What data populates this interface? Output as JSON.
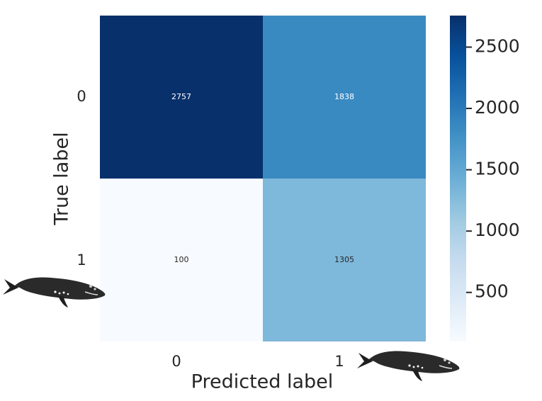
{
  "chart_data": {
    "type": "heatmap",
    "title": "",
    "xlabel": "Predicted label",
    "ylabel": "True label",
    "x_categories": [
      "0",
      "1"
    ],
    "y_categories": [
      "0",
      "1"
    ],
    "values": [
      [
        2757,
        1838
      ],
      [
        100,
        1305
      ]
    ],
    "colormap": "Blues",
    "colorbar": {
      "ticks": [
        "500",
        "1000",
        "1500",
        "2000",
        "2500"
      ],
      "tick_values": [
        500,
        1000,
        1500,
        2000,
        2500
      ],
      "range": [
        100,
        2757
      ]
    },
    "colors": {
      "c2757": "#08306b",
      "c1838": "#3484c1",
      "c1305": "#7fb9da",
      "c100": "#f7fbff"
    }
  },
  "decorations": {
    "whale_icon_left": "whale-icon",
    "whale_icon_right": "whale-icon"
  }
}
